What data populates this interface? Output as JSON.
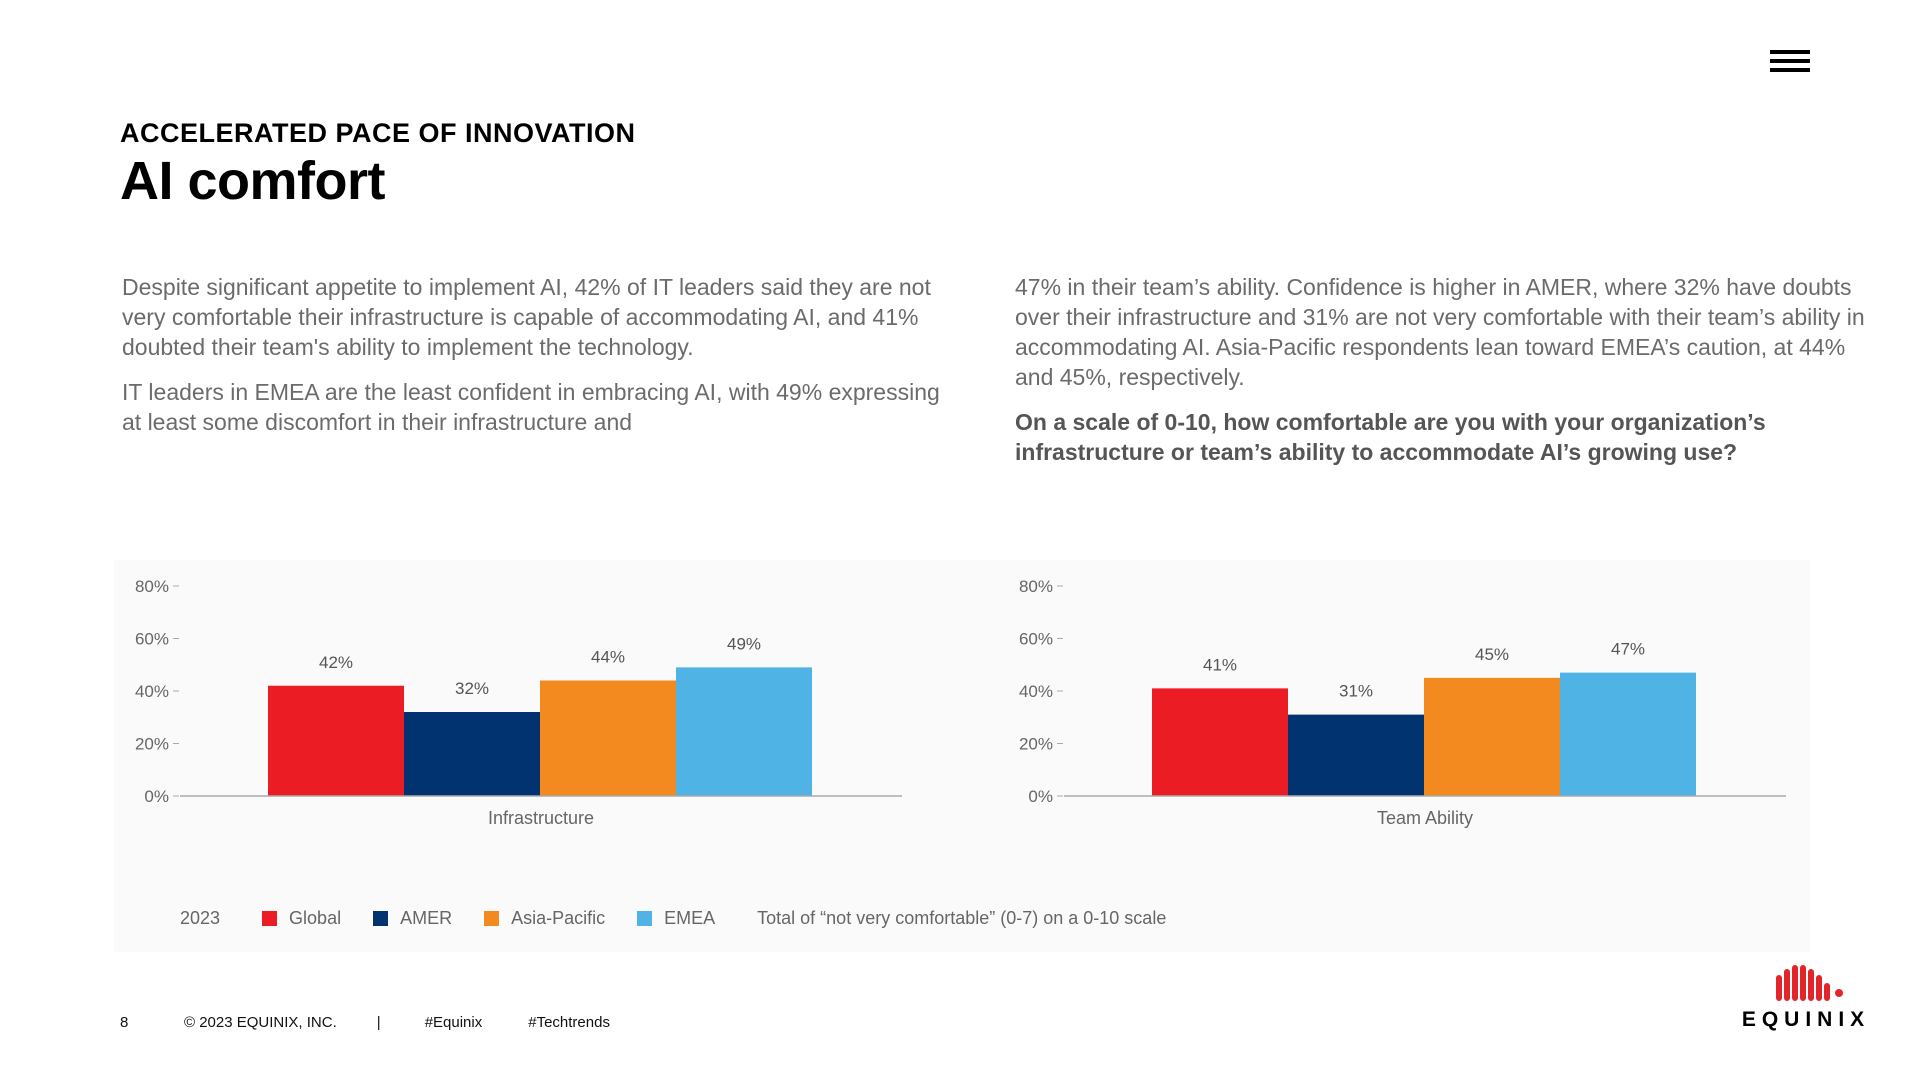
{
  "header": {
    "eyebrow": "ACCELERATED PACE OF INNOVATION",
    "title": "AI comfort"
  },
  "body": {
    "left_paragraphs": [
      "Despite significant appetite to implement AI, 42% of IT leaders said they are not very comfortable their infrastructure is capable of accommodating AI, and 41% doubted their team's ability to implement the technology.",
      "IT leaders in EMEA are the least confident in embracing AI, with 49% expressing at least some discomfort in their infrastructure and"
    ],
    "right_paragraph": "47% in their team’s ability. Confidence is higher in AMER, where 32% have doubts over their infrastructure and 31% are not very comfortable with their team’s ability in accommodating AI. Asia-Pacific respondents lean toward EMEA’s caution, at 44% and 45%, respectively.",
    "question": "On a scale of 0-10, how comfortable are you with your organization’s infrastructure or team’s ability to accommodate AI’s growing use?"
  },
  "legend": {
    "year": "2023",
    "items": [
      {
        "label": "Global",
        "color": "#ec1c24"
      },
      {
        "label": "AMER",
        "color": "#003370"
      },
      {
        "label": "Asia-Pacific",
        "color": "#f28a1f"
      },
      {
        "label": "EMEA",
        "color": "#4fb3e5"
      }
    ],
    "note": "Total of “not very comfortable” (0-7) on a 0-10 scale"
  },
  "colors": {
    "global": "#ec1c24",
    "amer": "#003370",
    "asia_pacific": "#f28a1f",
    "emea": "#4fb3e5",
    "axis": "#aaaaaa",
    "tick_text": "#666666",
    "label_text": "#555555"
  },
  "chart_data": [
    {
      "type": "bar",
      "title": "",
      "categories": [
        "Infrastructure"
      ],
      "series": [
        {
          "name": "Global",
          "values": [
            42
          ],
          "label": "42%"
        },
        {
          "name": "AMER",
          "values": [
            32
          ],
          "label": "32%"
        },
        {
          "name": "Asia-Pacific",
          "values": [
            44
          ],
          "label": "44%"
        },
        {
          "name": "EMEA",
          "values": [
            49
          ],
          "label": "49%"
        }
      ],
      "xlabel": "Infrastructure",
      "ylabel": "",
      "ylim": [
        0,
        80
      ],
      "yticks": [
        "0%",
        "20%",
        "40%",
        "60%",
        "80%"
      ],
      "ytick_values": [
        0,
        20,
        40,
        60,
        80
      ],
      "grid": false
    },
    {
      "type": "bar",
      "title": "",
      "categories": [
        "Team Ability"
      ],
      "series": [
        {
          "name": "Global",
          "values": [
            41
          ],
          "label": "41%"
        },
        {
          "name": "AMER",
          "values": [
            31
          ],
          "label": "31%"
        },
        {
          "name": "Asia-Pacific",
          "values": [
            45
          ],
          "label": "45%"
        },
        {
          "name": "EMEA",
          "values": [
            47
          ],
          "label": "47%"
        }
      ],
      "xlabel": "Team Ability",
      "ylabel": "",
      "ylim": [
        0,
        80
      ],
      "yticks": [
        "0%",
        "20%",
        "40%",
        "60%",
        "80%"
      ],
      "ytick_values": [
        0,
        20,
        40,
        60,
        80
      ],
      "grid": false
    }
  ],
  "footer": {
    "page_number": "8",
    "copyright": "© 2023 EQUINIX, INC.",
    "separator": "|",
    "tag1": "#Equinix",
    "tag2": "#Techtrends"
  },
  "logo": {
    "text": "EQUINIX"
  }
}
